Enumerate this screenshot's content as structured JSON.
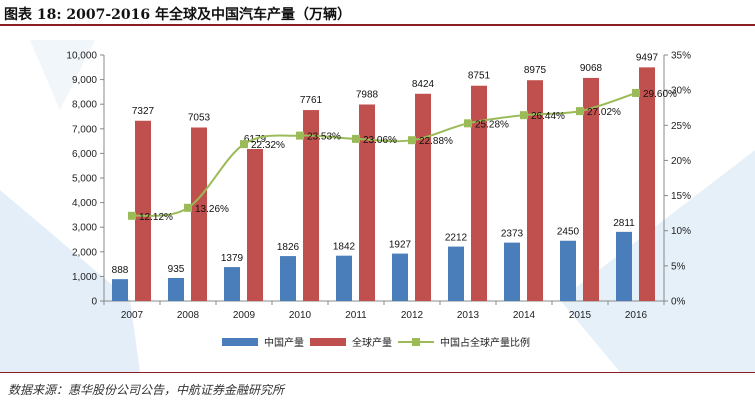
{
  "title": "图表 18: 2007-2016 年全球及中国汽车产量（万辆）",
  "source": "数据来源：惠华股份公司公告，中航证券金融研究所",
  "colors": {
    "china": "#4a7ebb",
    "global": "#c0504d",
    "ratio": "#9bbb59",
    "accent": "#8a1c24"
  },
  "chart_data": {
    "type": "bar",
    "categories": [
      "2007",
      "2008",
      "2009",
      "2010",
      "2011",
      "2012",
      "2013",
      "2014",
      "2015",
      "2016"
    ],
    "series": [
      {
        "name": "中国产量",
        "type": "bar",
        "axis": "left",
        "values": [
          888,
          935,
          1379,
          1826,
          1842,
          1927,
          2212,
          2373,
          2450,
          2811
        ],
        "labels": [
          "888",
          "935",
          "1379",
          "1826",
          "1842",
          "1927",
          "2212",
          "2373",
          "2450",
          "2811"
        ]
      },
      {
        "name": "全球产量",
        "type": "bar",
        "axis": "left",
        "values": [
          7327,
          7053,
          6179,
          7761,
          7988,
          8424,
          8751,
          8975,
          9068,
          9497
        ],
        "labels": [
          "7327",
          "7053",
          "6179",
          "7761",
          "7988",
          "8424",
          "8751",
          "8975",
          "9068",
          "9497"
        ]
      },
      {
        "name": "中国占全球产量比例",
        "type": "line",
        "axis": "right",
        "values": [
          12.12,
          13.26,
          22.32,
          23.53,
          23.06,
          22.88,
          25.28,
          26.44,
          27.02,
          29.6
        ],
        "labels": [
          "12.12%",
          "13.26%",
          "22.32%",
          "23.53%",
          "23.06%",
          "22.88%",
          "25.28%",
          "26.44%",
          "27.02%",
          "29.60%"
        ]
      }
    ],
    "ylim": [
      0,
      10000
    ],
    "y2lim": [
      0,
      35
    ],
    "yticks": [
      "0",
      "1,000",
      "2,000",
      "3,000",
      "4,000",
      "5,000",
      "6,000",
      "7,000",
      "8,000",
      "9,000",
      "10,000"
    ],
    "y2ticks": [
      "0%",
      "5%",
      "10%",
      "15%",
      "20%",
      "25%",
      "30%",
      "35%"
    ],
    "legend_position": "bottom",
    "grid": false
  }
}
